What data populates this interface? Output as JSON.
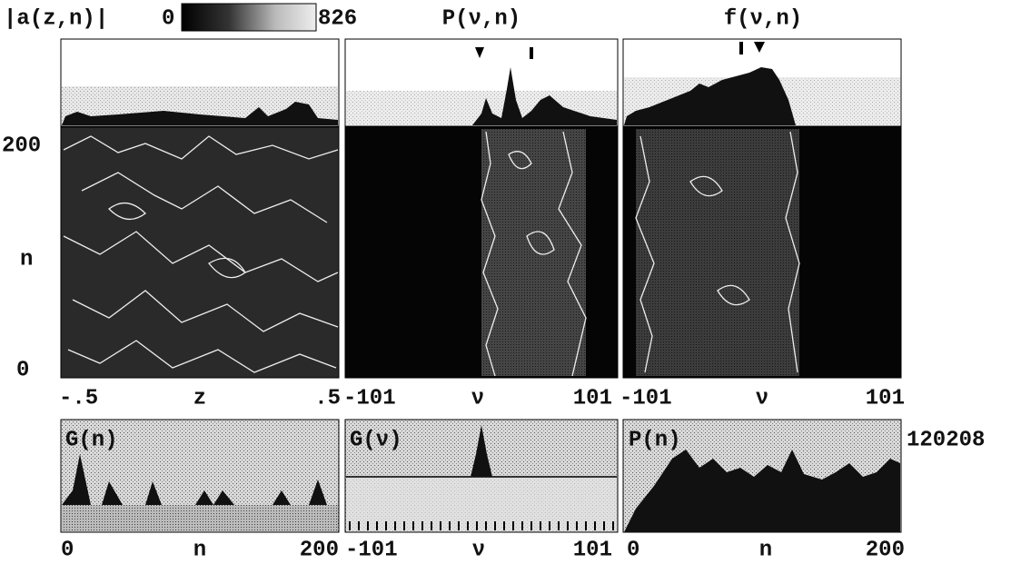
{
  "colorbar": {
    "label": "|a(z,n)|",
    "min": "0",
    "max": "826"
  },
  "top_titles": [
    "P(ν,n)",
    "f(ν,n)"
  ],
  "left_axis": {
    "top": "200",
    "label": "n",
    "bottom": "0"
  },
  "x_axes": [
    {
      "min": "-.5",
      "label": "z",
      "max": ".5"
    },
    {
      "min": "-101",
      "label": "ν",
      "max": "101"
    },
    {
      "min": "-101",
      "label": "ν",
      "max": "101"
    },
    {
      "min": "0",
      "label": "n",
      "max": "200"
    },
    {
      "min": "-101",
      "label": "ν",
      "max": "101"
    },
    {
      "min": "0",
      "label": "n",
      "max": "200"
    }
  ],
  "bottom_titles": [
    "G(n)",
    "G(ν)",
    "P(n)"
  ],
  "side_label": "120208"
}
